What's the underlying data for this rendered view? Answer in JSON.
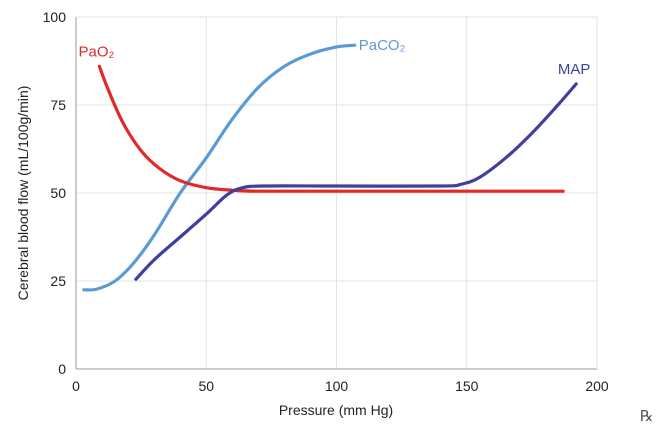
{
  "chart_data": {
    "type": "line",
    "xlabel": "Pressure (mm Hg)",
    "ylabel": "Cerebral blood flow (mL/100g/min)",
    "xlim": [
      0,
      200
    ],
    "ylim": [
      0,
      100
    ],
    "x_ticks": [
      "0",
      "50",
      "100",
      "150",
      "200"
    ],
    "y_ticks": [
      "0",
      "25",
      "50",
      "75",
      "100"
    ],
    "grid": true,
    "series": [
      {
        "name": "PaCO₂",
        "color": "#5b9bd5",
        "points": [
          [
            3,
            22.5
          ],
          [
            8,
            22.7
          ],
          [
            15,
            25
          ],
          [
            22,
            30
          ],
          [
            30,
            38
          ],
          [
            40,
            50
          ],
          [
            50,
            60
          ],
          [
            60,
            71
          ],
          [
            70,
            80
          ],
          [
            80,
            86
          ],
          [
            90,
            89.5
          ],
          [
            100,
            91.5
          ],
          [
            107,
            92
          ]
        ]
      },
      {
        "name": "PaO₂",
        "color": "#e02a2a",
        "points": [
          [
            9,
            86
          ],
          [
            12,
            80
          ],
          [
            18,
            70
          ],
          [
            25,
            62
          ],
          [
            32,
            57
          ],
          [
            40,
            53.5
          ],
          [
            50,
            51.5
          ],
          [
            60,
            50.8
          ],
          [
            70,
            50.5
          ],
          [
            100,
            50.5
          ],
          [
            150,
            50.5
          ],
          [
            187,
            50.5
          ]
        ]
      },
      {
        "name": "MAP",
        "color": "#3f3f9e",
        "points": [
          [
            23,
            25.5
          ],
          [
            30,
            31
          ],
          [
            40,
            37.5
          ],
          [
            50,
            44
          ],
          [
            58,
            49.5
          ],
          [
            64,
            51.5
          ],
          [
            72,
            52
          ],
          [
            100,
            52
          ],
          [
            140,
            52
          ],
          [
            148,
            52.5
          ],
          [
            155,
            54.5
          ],
          [
            165,
            60
          ],
          [
            175,
            67
          ],
          [
            185,
            75
          ],
          [
            192,
            81
          ]
        ]
      }
    ],
    "corner_mark": "℞"
  }
}
